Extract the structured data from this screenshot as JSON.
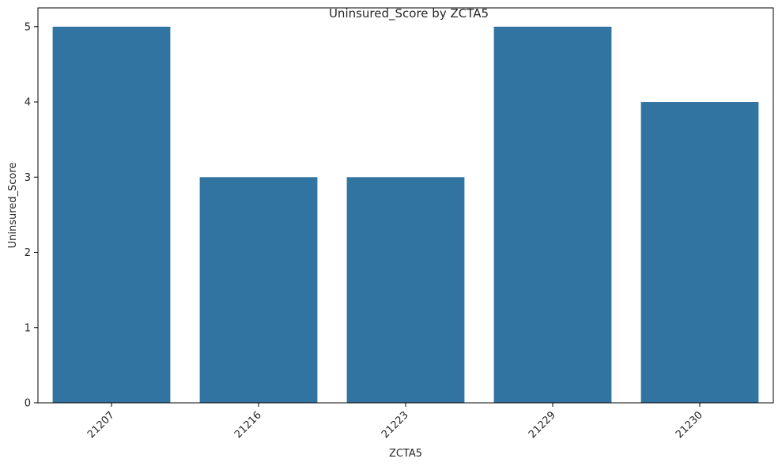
{
  "chart_data": {
    "type": "bar",
    "title": "Uninsured_Score by ZCTA5",
    "xlabel": "ZCTA5",
    "ylabel": "Uninsured_Score",
    "categories": [
      "21207",
      "21216",
      "21223",
      "21229",
      "21230"
    ],
    "values": [
      5,
      3,
      3,
      5,
      4
    ],
    "ylim": [
      0,
      5.25
    ],
    "yticks": [
      "0",
      "1",
      "2",
      "3",
      "4",
      "5"
    ],
    "grid": false,
    "bar_color": "#3274a1",
    "x_tick_rotation": "45"
  }
}
